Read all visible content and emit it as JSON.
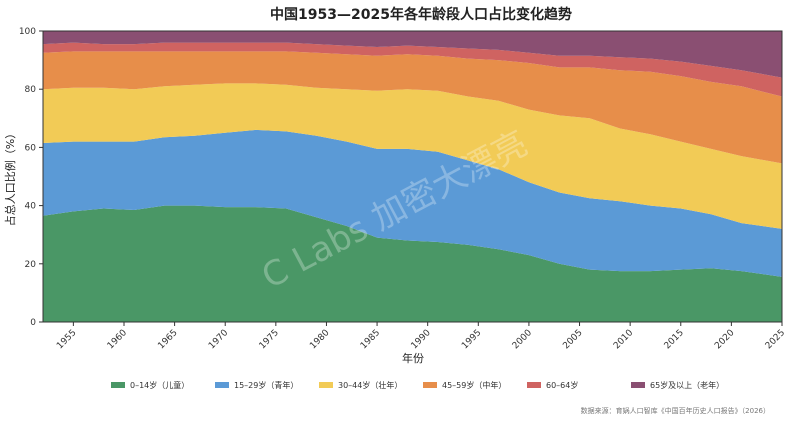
{
  "chart_data": {
    "type": "area",
    "stacked": true,
    "percent": true,
    "title": "中国1953—2025年各年龄段人口占比变化趋势",
    "xlabel": "年份",
    "ylabel": "占总人口比例（%）",
    "ylim": [
      0,
      100
    ],
    "xlim": [
      1952,
      2025
    ],
    "xticks": [
      "1955",
      "1960",
      "1965",
      "1970",
      "1975",
      "1980",
      "1985",
      "1990",
      "1995",
      "2000",
      "2005",
      "2010",
      "2015",
      "2020",
      "2025"
    ],
    "yticks": [
      "0",
      "20",
      "40",
      "60",
      "80",
      "100"
    ],
    "grid": false,
    "legend_position": "bottom",
    "x": [
      1952,
      1955,
      1958,
      1961,
      1964,
      1967,
      1970,
      1973,
      1976,
      1979,
      1982,
      1985,
      1988,
      1991,
      1994,
      1997,
      2000,
      2003,
      2006,
      2009,
      2012,
      2015,
      2018,
      2021,
      2025
    ],
    "series": [
      {
        "name": "0–14岁（儿童）",
        "color": "#4a9766",
        "values": [
          36.5,
          38,
          39,
          38.5,
          40,
          40,
          39.5,
          39.5,
          39,
          36,
          33,
          29,
          28,
          27.5,
          26.5,
          25,
          23,
          20,
          18,
          17.5,
          17.5,
          18,
          18.5,
          17.5,
          15.5
        ]
      },
      {
        "name": "15–29岁（青年）",
        "color": "#5b9ad6",
        "values": [
          25,
          24,
          23,
          23.5,
          23.5,
          24,
          25.5,
          26.5,
          26.5,
          28,
          29,
          30.5,
          31.5,
          31,
          29,
          27.5,
          25,
          24.5,
          24.5,
          24,
          22.5,
          21,
          18.5,
          16.5,
          16.5
        ]
      },
      {
        "name": "30–44岁（壮年）",
        "color": "#f2cb56",
        "values": [
          18.5,
          18.5,
          18.5,
          18,
          17.5,
          17.5,
          17,
          16,
          16,
          16.5,
          18,
          20,
          20.5,
          21,
          22,
          23.5,
          25,
          26.5,
          27.5,
          25,
          24.5,
          23,
          22.5,
          23,
          22.5
        ]
      },
      {
        "name": "45–59岁（中年）",
        "color": "#e78e4a",
        "values": [
          12.5,
          12.5,
          12.5,
          13,
          12,
          11.5,
          11,
          11,
          11.5,
          12,
          12,
          12,
          12,
          12,
          13,
          14,
          16,
          16.5,
          17.5,
          20,
          21.5,
          22.5,
          23,
          24,
          23
        ]
      },
      {
        "name": "60–64岁",
        "color": "#cf6361",
        "values": [
          3,
          3,
          2.5,
          2.5,
          3,
          3,
          3,
          3,
          3,
          3,
          3,
          3,
          3,
          3,
          3.5,
          3.5,
          3.5,
          4,
          4,
          4.5,
          4.5,
          5,
          5.5,
          5.5,
          6.5
        ]
      },
      {
        "name": "65岁及以上（老年）",
        "color": "#8a4f72",
        "values": [
          4.5,
          4,
          4.5,
          4.5,
          4,
          4,
          4,
          4,
          4,
          4.5,
          5,
          5.5,
          5,
          5.5,
          6,
          6.5,
          7.5,
          8.5,
          8.5,
          9,
          9.5,
          10.5,
          12,
          13.5,
          16
        ]
      }
    ],
    "source": "数据来源：育娲人口智库《中国百年历史人口报告》（2026）",
    "watermark": "C Labs 加密大漂亮"
  }
}
